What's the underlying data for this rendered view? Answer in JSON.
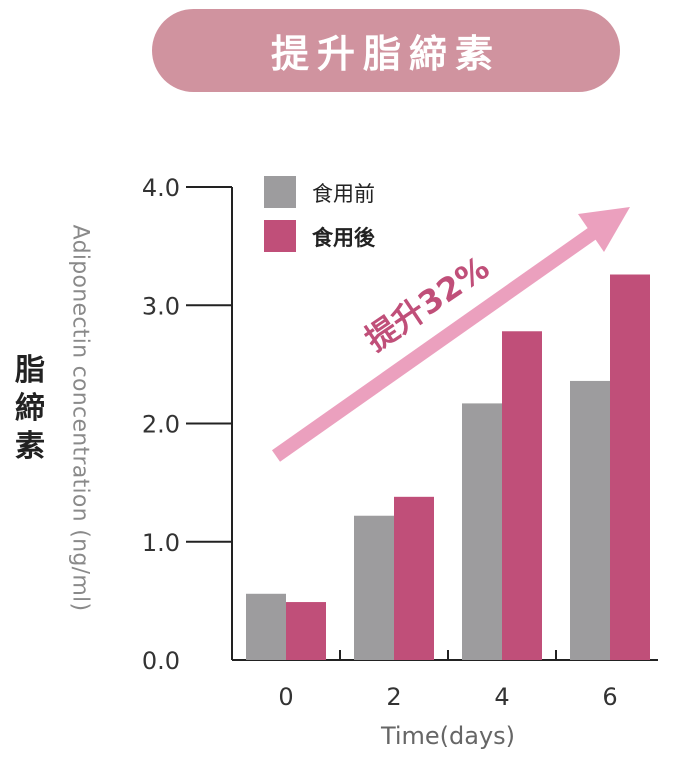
{
  "header": {
    "title": "提升脂締素"
  },
  "side_label": "脂締素",
  "colors": {
    "before": "#9d9c9e",
    "after": "#c04f79",
    "arrow": "#eba0be",
    "pill": "#d0939f"
  },
  "chart_data": {
    "type": "bar",
    "categories": [
      "0",
      "2",
      "4",
      "6"
    ],
    "series": [
      {
        "name": "食用前",
        "values": [
          0.56,
          1.22,
          2.17,
          2.36
        ]
      },
      {
        "name": "食用後",
        "values": [
          0.49,
          1.38,
          2.78,
          3.26
        ]
      }
    ],
    "ylabel": "Adiponectin concentration (ng/ml)",
    "xlabel": "Time(days)",
    "ylim": [
      0,
      4
    ],
    "yticks": [
      "0.0",
      "1.0",
      "2.0",
      "3.0",
      "4.0"
    ],
    "legend_position": "top-left",
    "annotation": "提升32%"
  }
}
